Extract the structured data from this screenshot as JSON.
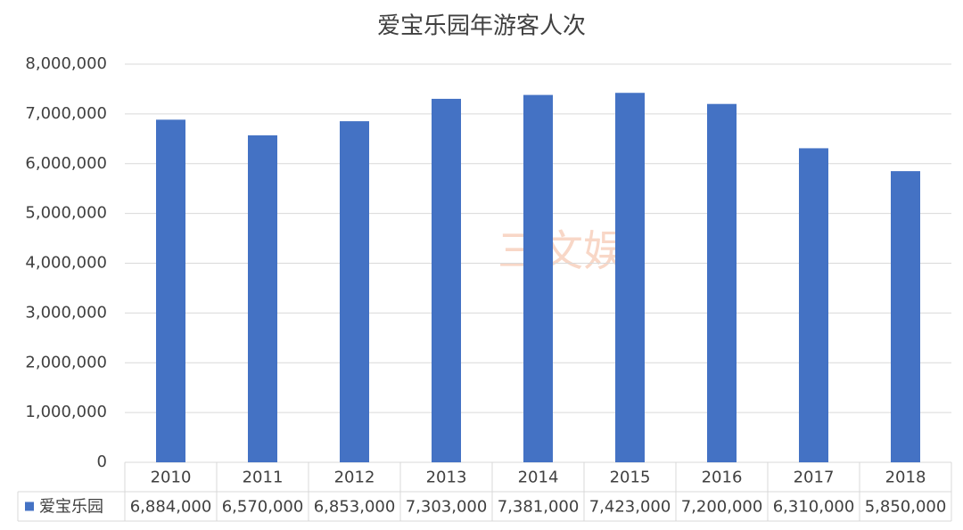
{
  "chart_data": {
    "type": "bar",
    "title": "爱宝乐园年游客人次",
    "categories": [
      "2010",
      "2011",
      "2012",
      "2013",
      "2014",
      "2015",
      "2016",
      "2017",
      "2018"
    ],
    "series": [
      {
        "name": "爱宝乐园",
        "color": "#4472c4",
        "values": [
          6884000,
          6570000,
          6853000,
          7303000,
          7381000,
          7423000,
          7200000,
          6310000,
          5850000
        ],
        "value_labels": [
          "6,884,000",
          "6,570,000",
          "6,853,000",
          "7,303,000",
          "7,381,000",
          "7,423,000",
          "7,200,000",
          "6,310,000",
          "5,850,000"
        ]
      }
    ],
    "ylim": [
      0,
      8000000
    ],
    "yticks": [
      0,
      {
        "value": 1000000,
        "label": "1,000,000"
      },
      {
        "value": 2000000,
        "label": "2,000,000"
      },
      {
        "value": 3000000,
        "label": "3,000,000"
      },
      {
        "value": 4000000,
        "label": "4,000,000"
      },
      {
        "value": 5000000,
        "label": "5,000,000"
      },
      {
        "value": 6000000,
        "label": "6,000,000"
      },
      {
        "value": 7000000,
        "label": "7,000,000"
      },
      {
        "value": 8000000,
        "label": "8,000,000"
      }
    ],
    "grid": true,
    "watermark": "三文娱"
  }
}
